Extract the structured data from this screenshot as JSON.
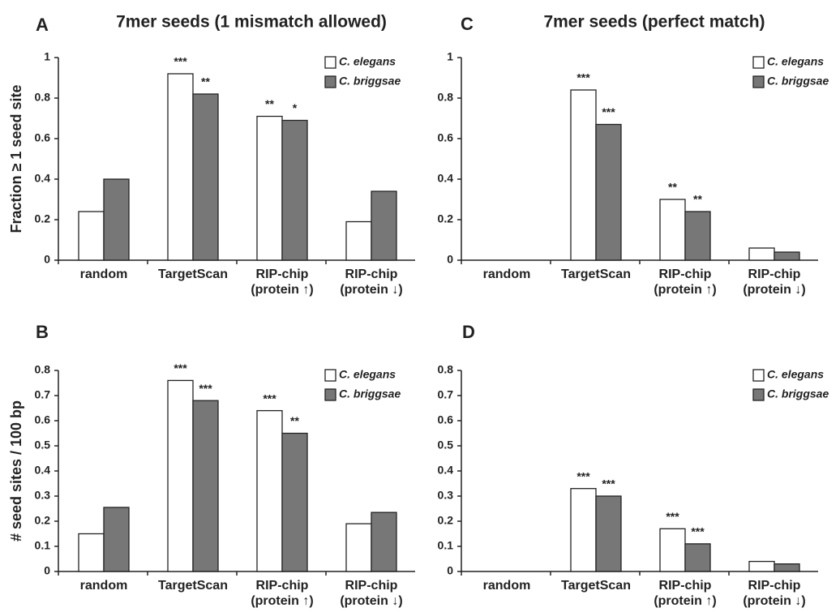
{
  "chart_data": [
    {
      "type": "bar",
      "label": "A",
      "title": "7mer seeds (1 mismatch allowed)",
      "ylabel": "Fraction ≥ 1 seed site",
      "categories": [
        "random",
        "TargetScan",
        "RIP-chip\n(protein ↑)",
        "RIP-chip\n(protein ↓)"
      ],
      "series": [
        {
          "name": "C. elegans",
          "color": "#ffffff",
          "values": [
            0.24,
            0.92,
            0.71,
            0.19
          ],
          "significance": [
            null,
            "***",
            "**",
            null
          ]
        },
        {
          "name": "C. briggsae",
          "color": "#777777",
          "values": [
            0.4,
            0.82,
            0.69,
            0.34
          ],
          "significance": [
            null,
            "**",
            "*",
            null
          ]
        }
      ],
      "ylim": [
        0,
        1
      ],
      "yticks": [
        0,
        0.2,
        0.4,
        0.6,
        0.8,
        1
      ],
      "legend": "upper right"
    },
    {
      "type": "bar",
      "label": "C",
      "title": "7mer seeds (perfect match)",
      "categories": [
        "random",
        "TargetScan",
        "RIP-chip\n(protein ↑)",
        "RIP-chip\n(protein ↓)"
      ],
      "series": [
        {
          "name": "C. elegans",
          "color": "#ffffff",
          "values": [
            0,
            0.84,
            0.3,
            0.06
          ],
          "significance": [
            null,
            "***",
            "**",
            null
          ]
        },
        {
          "name": "C. briggsae",
          "color": "#777777",
          "values": [
            0,
            0.67,
            0.24,
            0.04
          ],
          "significance": [
            null,
            "***",
            "**",
            null
          ]
        }
      ],
      "ylim": [
        0,
        1
      ],
      "yticks": [
        0,
        0.2,
        0.4,
        0.6,
        0.8,
        1
      ],
      "legend": "upper right"
    },
    {
      "type": "bar",
      "label": "B",
      "ylabel": "# seed sites / 100 bp",
      "categories": [
        "random",
        "TargetScan",
        "RIP-chip\n(protein ↑)",
        "RIP-chip\n(protein ↓)"
      ],
      "series": [
        {
          "name": "C. elegans",
          "color": "#ffffff",
          "values": [
            0.15,
            0.76,
            0.64,
            0.19
          ],
          "significance": [
            null,
            "***",
            "***",
            null
          ]
        },
        {
          "name": "C. briggsae",
          "color": "#777777",
          "values": [
            0.255,
            0.68,
            0.55,
            0.235
          ],
          "significance": [
            null,
            "***",
            "**",
            null
          ]
        }
      ],
      "ylim": [
        0,
        0.8
      ],
      "yticks": [
        0,
        0.1,
        0.2,
        0.3,
        0.4,
        0.5,
        0.6,
        0.7,
        0.8
      ],
      "legend": "upper right"
    },
    {
      "type": "bar",
      "label": "D",
      "categories": [
        "random",
        "TargetScan",
        "RIP-chip\n(protein ↑)",
        "RIP-chip\n(protein ↓)"
      ],
      "series": [
        {
          "name": "C. elegans",
          "color": "#ffffff",
          "values": [
            0,
            0.33,
            0.17,
            0.04
          ],
          "significance": [
            null,
            "***",
            "***",
            null
          ]
        },
        {
          "name": "C. briggsae",
          "color": "#777777",
          "values": [
            0,
            0.3,
            0.11,
            0.03
          ],
          "significance": [
            null,
            "***",
            "***",
            null
          ]
        }
      ],
      "ylim": [
        0,
        0.8
      ],
      "yticks": [
        0,
        0.1,
        0.2,
        0.3,
        0.4,
        0.5,
        0.6,
        0.7,
        0.8
      ],
      "legend": "upper right"
    }
  ]
}
